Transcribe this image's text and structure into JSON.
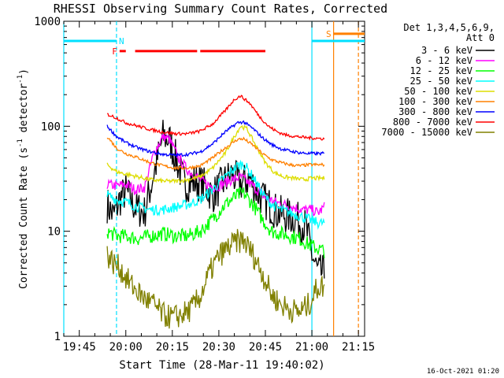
{
  "chart_data": {
    "type": "line",
    "title": "RHESSI Observing Summary Count Rates, Corrected",
    "xlabel": "Start Time (28-Mar-11 19:40:02)",
    "ylabel_main": "Corrected Count Rate (s",
    "ylabel_sup1": "-1",
    "ylabel_mid": " detector",
    "ylabel_sup2": "-1",
    "ylabel_end": ")",
    "yscale": "log",
    "xlim": [
      "19:40",
      "21:17"
    ],
    "ylim": [
      1,
      1000
    ],
    "xticks": [
      "19:45",
      "20:00",
      "20:15",
      "20:30",
      "20:45",
      "21:00",
      "21:15"
    ],
    "yticks": [
      {
        "value": 1,
        "label": "1"
      },
      {
        "value": 10,
        "label": "10"
      },
      {
        "value": 100,
        "label": "100"
      },
      {
        "value": 1000,
        "label": "1000"
      }
    ],
    "legend_header": [
      "Det 1,3,4,5,6,9,",
      "Att 0"
    ],
    "legend_placement": "right",
    "timestamp": "16-Oct-2021 01:20",
    "data_start": "19:54",
    "data_end": "21:04",
    "series": [
      {
        "name": "3 - 6 keV",
        "color": "#000000",
        "noise": 0.18,
        "points": [
          [
            "19:54",
            18
          ],
          [
            "19:56",
            14
          ],
          [
            "19:58",
            20
          ],
          [
            "20:00",
            24
          ],
          [
            "20:03",
            17
          ],
          [
            "20:06",
            15
          ],
          [
            "20:09",
            35
          ],
          [
            "20:12",
            80
          ],
          [
            "20:14",
            75
          ],
          [
            "20:16",
            50
          ],
          [
            "20:19",
            28
          ],
          [
            "20:22",
            30
          ],
          [
            "20:25",
            28
          ],
          [
            "20:28",
            22
          ],
          [
            "20:31",
            28
          ],
          [
            "20:34",
            35
          ],
          [
            "20:37",
            28
          ],
          [
            "20:40",
            32
          ],
          [
            "20:43",
            22
          ],
          [
            "20:46",
            18
          ],
          [
            "20:49",
            15
          ],
          [
            "20:52",
            14
          ],
          [
            "20:55",
            13
          ],
          [
            "20:58",
            11
          ],
          [
            "21:00",
            6
          ],
          [
            "21:02",
            4
          ],
          [
            "21:04",
            4
          ]
        ]
      },
      {
        "name": "6 - 12 keV",
        "color": "#ff00ff",
        "noise": 0.05,
        "points": [
          [
            "19:54",
            28
          ],
          [
            "19:57",
            27
          ],
          [
            "20:00",
            28
          ],
          [
            "20:03",
            25
          ],
          [
            "20:06",
            26
          ],
          [
            "20:09",
            55
          ],
          [
            "20:12",
            80
          ],
          [
            "20:14",
            75
          ],
          [
            "20:17",
            50
          ],
          [
            "20:20",
            38
          ],
          [
            "20:23",
            33
          ],
          [
            "20:26",
            28
          ],
          [
            "20:29",
            26
          ],
          [
            "20:33",
            30
          ],
          [
            "20:37",
            33
          ],
          [
            "20:41",
            27
          ],
          [
            "20:45",
            21
          ],
          [
            "20:48",
            19
          ],
          [
            "20:51",
            18
          ],
          [
            "20:54",
            17
          ],
          [
            "20:57",
            16
          ],
          [
            "21:00",
            16
          ],
          [
            "21:02",
            15
          ],
          [
            "21:04",
            17
          ]
        ]
      },
      {
        "name": "12 - 25 keV",
        "color": "#00ff00",
        "noise": 0.07,
        "points": [
          [
            "19:54",
            10
          ],
          [
            "19:57",
            9
          ],
          [
            "20:00",
            9
          ],
          [
            "20:04",
            8.5
          ],
          [
            "20:08",
            9
          ],
          [
            "20:12",
            9.5
          ],
          [
            "20:16",
            9
          ],
          [
            "20:20",
            9
          ],
          [
            "20:24",
            10
          ],
          [
            "20:28",
            13
          ],
          [
            "20:32",
            18
          ],
          [
            "20:36",
            22
          ],
          [
            "20:38",
            23
          ],
          [
            "20:41",
            18
          ],
          [
            "20:44",
            13
          ],
          [
            "20:47",
            10
          ],
          [
            "20:50",
            9.5
          ],
          [
            "20:53",
            9
          ],
          [
            "20:56",
            8.5
          ],
          [
            "20:59",
            7.5
          ],
          [
            "21:01",
            7
          ],
          [
            "21:04",
            6.5
          ]
        ]
      },
      {
        "name": "25 - 50 keV",
        "color": "#00ffff",
        "noise": 0.05,
        "points": [
          [
            "19:54",
            22
          ],
          [
            "19:57",
            20
          ],
          [
            "20:00",
            19
          ],
          [
            "20:04",
            17
          ],
          [
            "20:08",
            16
          ],
          [
            "20:12",
            16
          ],
          [
            "20:16",
            17
          ],
          [
            "20:20",
            18
          ],
          [
            "20:24",
            20
          ],
          [
            "20:28",
            25
          ],
          [
            "20:32",
            33
          ],
          [
            "20:36",
            42
          ],
          [
            "20:38",
            44
          ],
          [
            "20:41",
            33
          ],
          [
            "20:44",
            23
          ],
          [
            "20:47",
            18
          ],
          [
            "20:50",
            16
          ],
          [
            "20:53",
            15
          ],
          [
            "20:56",
            14
          ],
          [
            "20:59",
            13
          ],
          [
            "21:02",
            12
          ],
          [
            "21:04",
            12
          ]
        ]
      },
      {
        "name": "50 - 100 keV",
        "color": "#dddd00",
        "noise": 0.02,
        "points": [
          [
            "19:54",
            43
          ],
          [
            "19:57",
            37
          ],
          [
            "20:00",
            35
          ],
          [
            "20:04",
            33
          ],
          [
            "20:08",
            31
          ],
          [
            "20:12",
            30
          ],
          [
            "20:16",
            30
          ],
          [
            "20:20",
            31
          ],
          [
            "20:24",
            33
          ],
          [
            "20:28",
            40
          ],
          [
            "20:32",
            55
          ],
          [
            "20:35",
            80
          ],
          [
            "20:37",
            100
          ],
          [
            "20:39",
            95
          ],
          [
            "20:42",
            65
          ],
          [
            "20:45",
            45
          ],
          [
            "20:48",
            36
          ],
          [
            "20:51",
            33
          ],
          [
            "20:54",
            32
          ],
          [
            "20:57",
            31
          ],
          [
            "21:00",
            32
          ],
          [
            "21:02",
            32
          ],
          [
            "21:04",
            32
          ]
        ]
      },
      {
        "name": "100 - 300 keV",
        "color": "#ff8000",
        "noise": 0.015,
        "points": [
          [
            "19:54",
            80
          ],
          [
            "19:57",
            62
          ],
          [
            "20:00",
            55
          ],
          [
            "20:04",
            50
          ],
          [
            "20:08",
            45
          ],
          [
            "20:12",
            42
          ],
          [
            "20:16",
            40
          ],
          [
            "20:20",
            40
          ],
          [
            "20:24",
            42
          ],
          [
            "20:28",
            50
          ],
          [
            "20:32",
            62
          ],
          [
            "20:36",
            75
          ],
          [
            "20:38",
            76
          ],
          [
            "20:41",
            66
          ],
          [
            "20:44",
            55
          ],
          [
            "20:47",
            48
          ],
          [
            "20:50",
            45
          ],
          [
            "20:53",
            43
          ],
          [
            "20:56",
            42
          ],
          [
            "20:59",
            43
          ],
          [
            "21:02",
            43
          ],
          [
            "21:04",
            43
          ]
        ]
      },
      {
        "name": "300 - 800 keV",
        "color": "#0000ff",
        "noise": 0.015,
        "points": [
          [
            "19:54",
            100
          ],
          [
            "19:57",
            80
          ],
          [
            "20:00",
            70
          ],
          [
            "20:04",
            62
          ],
          [
            "20:08",
            57
          ],
          [
            "20:12",
            54
          ],
          [
            "20:16",
            53
          ],
          [
            "20:20",
            54
          ],
          [
            "20:24",
            57
          ],
          [
            "20:28",
            68
          ],
          [
            "20:32",
            88
          ],
          [
            "20:36",
            108
          ],
          [
            "20:38",
            110
          ],
          [
            "20:41",
            95
          ],
          [
            "20:44",
            78
          ],
          [
            "20:47",
            67
          ],
          [
            "20:50",
            61
          ],
          [
            "20:53",
            58
          ],
          [
            "20:56",
            56
          ],
          [
            "20:59",
            55
          ],
          [
            "21:02",
            55
          ],
          [
            "21:04",
            55
          ]
        ]
      },
      {
        "name": "800 - 7000 keV",
        "color": "#ff0000",
        "noise": 0.015,
        "points": [
          [
            "19:54",
            130
          ],
          [
            "19:57",
            120
          ],
          [
            "20:00",
            108
          ],
          [
            "20:04",
            100
          ],
          [
            "20:08",
            93
          ],
          [
            "20:12",
            88
          ],
          [
            "20:16",
            85
          ],
          [
            "20:20",
            85
          ],
          [
            "20:24",
            90
          ],
          [
            "20:28",
            105
          ],
          [
            "20:32",
            140
          ],
          [
            "20:35",
            180
          ],
          [
            "20:37",
            195
          ],
          [
            "20:40",
            165
          ],
          [
            "20:43",
            125
          ],
          [
            "20:46",
            100
          ],
          [
            "20:49",
            88
          ],
          [
            "20:52",
            82
          ],
          [
            "20:55",
            80
          ],
          [
            "20:58",
            78
          ],
          [
            "21:01",
            77
          ],
          [
            "21:04",
            76
          ]
        ]
      },
      {
        "name": "7000 - 15000 keV",
        "color": "#808000",
        "noise": 0.12,
        "points": [
          [
            "19:54",
            6
          ],
          [
            "19:56",
            5
          ],
          [
            "19:58",
            4.5
          ],
          [
            "20:00",
            3.6
          ],
          [
            "20:03",
            2.8
          ],
          [
            "20:06",
            2.3
          ],
          [
            "20:09",
            2
          ],
          [
            "20:12",
            1.6
          ],
          [
            "20:15",
            1.5
          ],
          [
            "20:18",
            1.6
          ],
          [
            "20:21",
            1.8
          ],
          [
            "20:24",
            2.4
          ],
          [
            "20:27",
            4
          ],
          [
            "20:30",
            5.8
          ],
          [
            "20:33",
            7
          ],
          [
            "20:36",
            8
          ],
          [
            "20:38",
            8.2
          ],
          [
            "20:41",
            6
          ],
          [
            "20:44",
            4
          ],
          [
            "20:47",
            2.5
          ],
          [
            "20:50",
            2
          ],
          [
            "20:53",
            1.8
          ],
          [
            "20:56",
            1.7
          ],
          [
            "20:59",
            2
          ],
          [
            "21:02",
            3
          ],
          [
            "21:04",
            3
          ]
        ]
      }
    ],
    "flag_lines": [
      {
        "x": "19:40",
        "color": "#00e0ff",
        "style": "solid"
      },
      {
        "x": "19:57",
        "color": "#00e0ff",
        "style": "dashed"
      },
      {
        "x": "21:00",
        "color": "#00e0ff",
        "style": "solid"
      },
      {
        "x": "21:07",
        "color": "#ff8000",
        "style": "solid"
      },
      {
        "x": "21:15",
        "color": "#ff8000",
        "style": "dashed"
      }
    ],
    "flag_bars": [
      {
        "label": "",
        "color": "#00e0ff",
        "y": 650,
        "segments": [
          [
            "19:40",
            "19:57"
          ]
        ]
      },
      {
        "label": "N",
        "color": "#00e0ff",
        "y": 650,
        "segments": []
      },
      {
        "label": "F",
        "color": "#ff0000",
        "y": 520,
        "segments": [
          [
            "19:58",
            "20:00"
          ],
          [
            "20:03",
            "20:23"
          ],
          [
            "20:24",
            "20:45"
          ]
        ]
      },
      {
        "label": "",
        "color": "#00e0ff",
        "y": 650,
        "segments": [
          [
            "21:00",
            "21:17"
          ]
        ]
      },
      {
        "label": "S",
        "color": "#ff8000",
        "y": 760,
        "segments": [
          [
            "21:07",
            "21:17"
          ]
        ]
      }
    ]
  }
}
